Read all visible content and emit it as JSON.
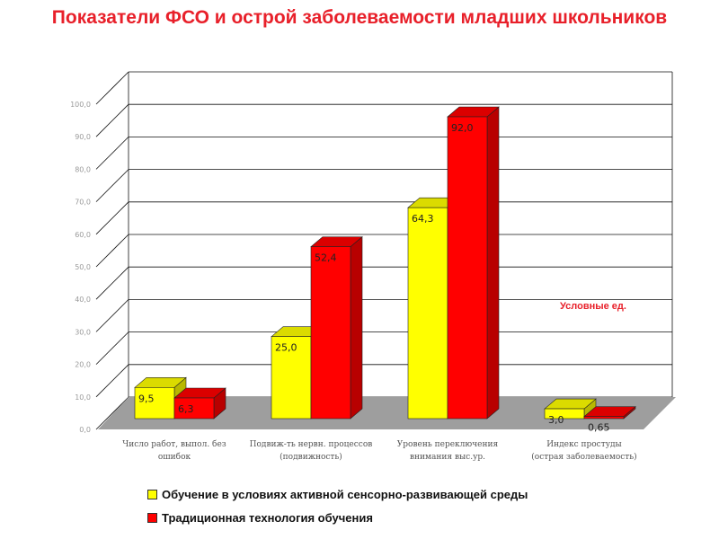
{
  "title": "Показатели ФСО и острой заболеваемости младших школьников",
  "chart_data": {
    "type": "bar",
    "title": "Показатели ФСО и острой заболеваемости младших школьников",
    "categories": [
      [
        "Число работ, выпол. без",
        "ошибок"
      ],
      [
        "Подвиж-ть нервн. процессов",
        "(подвижность)"
      ],
      [
        "Уровень переключения",
        "внимания выс.ур."
      ],
      [
        "Индекс простуды",
        "(острая заболеваемость)"
      ]
    ],
    "series": [
      {
        "name": "Обучение в условиях активной сенсорно-развивающей среды",
        "color": "#ffff00",
        "values": [
          9.5,
          25.0,
          64.3,
          3.0
        ]
      },
      {
        "name": "Традиционная технология обучения",
        "color": "#ff0000",
        "values": [
          6.3,
          52.4,
          92.0,
          0.65
        ]
      }
    ],
    "value_labels": [
      [
        "9,5",
        "25,0",
        "64,3",
        "3,0"
      ],
      [
        "6,3",
        "52,4",
        "92,0",
        "0,65"
      ]
    ],
    "y_ticks": [
      "0,0",
      "10,0",
      "20,0",
      "30,0",
      "40,0",
      "50,0",
      "60,0",
      "70,0",
      "80,0",
      "90,0",
      "100,0"
    ],
    "ylim": [
      0,
      100
    ],
    "annotation": "Условные ед.",
    "grid": true,
    "legend_position": "bottom"
  }
}
